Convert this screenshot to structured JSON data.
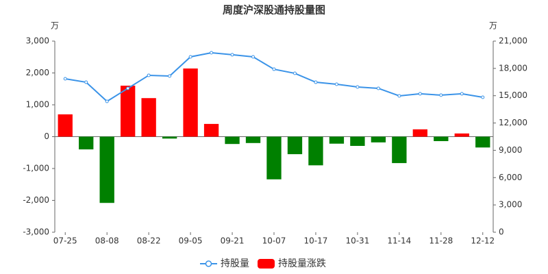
{
  "chart_data": {
    "type": "combo",
    "title": "周度沪深股通持股量图",
    "y_unit": "万",
    "y2_unit": "万",
    "categories": [
      "07-25",
      null,
      "08-08",
      null,
      "08-22",
      null,
      "09-05",
      null,
      "09-21",
      null,
      "10-07",
      null,
      "10-17",
      null,
      "10-31",
      null,
      "11-14",
      null,
      "11-28",
      null,
      "12-12"
    ],
    "series": [
      {
        "name": "持股量",
        "type": "line",
        "axis": "y2",
        "color": "#3a93e8",
        "values": [
          16860,
          16480,
          14380,
          15810,
          17240,
          17160,
          19270,
          19720,
          19500,
          19270,
          17910,
          17460,
          16480,
          16260,
          15960,
          15810,
          14980,
          15210,
          15060,
          15210,
          14830
        ]
      },
      {
        "name": "持股量涨跌",
        "type": "bar",
        "axis": "y",
        "color": "#ff0000",
        "negative_color": "#008000",
        "values": [
          700,
          -400,
          -2080,
          1600,
          1210,
          -60,
          2140,
          400,
          -230,
          -200,
          -1340,
          -550,
          -900,
          -220,
          -290,
          -180,
          -830,
          230,
          -140,
          100,
          -340
        ]
      }
    ],
    "ylim": [
      -3000,
      3000
    ],
    "yticks": [
      {
        "value": -3000,
        "label": "-3,000"
      },
      {
        "value": -2000,
        "label": "-2,000"
      },
      {
        "value": -1000,
        "label": "-1,000"
      },
      0,
      {
        "value": 1000,
        "label": "1,000"
      },
      {
        "value": 2000,
        "label": "2,000"
      },
      {
        "value": 3000,
        "label": "3,000"
      }
    ],
    "y2lim": [
      0,
      21000
    ],
    "y2ticks": [
      0,
      {
        "value": 3000,
        "label": "3,000"
      },
      {
        "value": 6000,
        "label": "6,000"
      },
      {
        "value": 9000,
        "label": "9,000"
      },
      {
        "value": 12000,
        "label": "12,000"
      },
      {
        "value": 15000,
        "label": "15,000"
      },
      {
        "value": 18000,
        "label": "18,000"
      },
      {
        "value": 21000,
        "label": "21,000"
      }
    ],
    "grid": false,
    "legend": "bottom"
  }
}
